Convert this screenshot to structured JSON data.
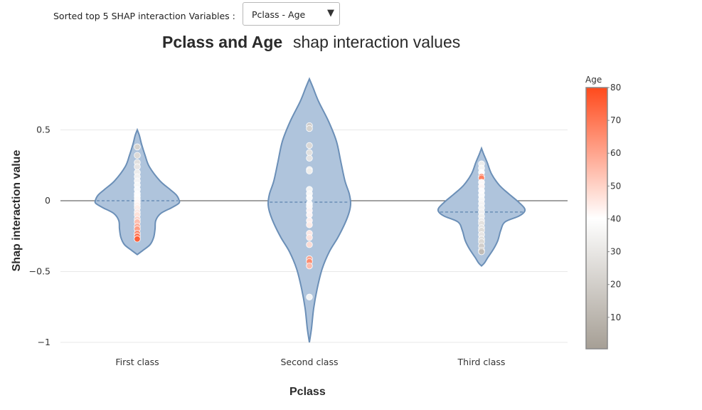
{
  "controls": {
    "label": "Sorted top 5 SHAP interaction Variables :",
    "selected": "Pclass - Age",
    "caret": "▼"
  },
  "chart_data": {
    "type": "violin",
    "title_bold": "Pclass and Age",
    "title_rest": "shap interaction values",
    "xlabel": "Pclass",
    "ylabel": "Shap interaction value",
    "categories": [
      "First class",
      "Second class",
      "Third class"
    ],
    "ylim": [
      -1.0,
      0.87
    ],
    "yticks": [
      0.5,
      0,
      -0.5,
      -1
    ],
    "ytick_labels": [
      "0.5",
      "0",
      "−0.5",
      "−1"
    ],
    "grid": true,
    "colorbar": {
      "title": "Age",
      "range": [
        0.42,
        80
      ],
      "ticks": [
        10,
        20,
        30,
        40,
        50,
        60,
        70,
        80
      ],
      "colorscale": [
        "#a69f95",
        "#ffffff",
        "#ff4a1c"
      ]
    },
    "violin_colors": {
      "fill": "#afc4dc",
      "line": "#6b8fb7"
    },
    "series": [
      {
        "category": "First class",
        "y_range": [
          -0.38,
          0.5
        ],
        "median": 0.0,
        "points": [
          [
            0.38,
            22
          ],
          [
            0.32,
            25
          ],
          [
            0.27,
            28
          ],
          [
            0.24,
            30
          ],
          [
            0.2,
            33
          ],
          [
            0.17,
            35
          ],
          [
            0.14,
            37
          ],
          [
            0.11,
            38
          ],
          [
            0.08,
            39
          ],
          [
            0.05,
            40
          ],
          [
            0.03,
            40
          ],
          [
            0.01,
            41
          ],
          [
            -0.01,
            42
          ],
          [
            -0.03,
            43
          ],
          [
            -0.05,
            44
          ],
          [
            -0.08,
            45
          ],
          [
            -0.1,
            47
          ],
          [
            -0.13,
            50
          ],
          [
            -0.15,
            55
          ],
          [
            -0.18,
            58
          ],
          [
            -0.2,
            62
          ],
          [
            -0.23,
            66
          ],
          [
            -0.25,
            70
          ],
          [
            -0.27,
            76
          ]
        ]
      },
      {
        "category": "Second class",
        "y_range": [
          -1.0,
          0.86
        ],
        "median": -0.01,
        "points": [
          [
            0.53,
            20
          ],
          [
            0.51,
            22
          ],
          [
            0.39,
            25
          ],
          [
            0.34,
            28
          ],
          [
            0.3,
            30
          ],
          [
            0.22,
            32
          ],
          [
            0.21,
            33
          ],
          [
            0.08,
            36
          ],
          [
            0.05,
            38
          ],
          [
            0.02,
            39
          ],
          [
            -0.02,
            40
          ],
          [
            -0.04,
            41
          ],
          [
            -0.07,
            42
          ],
          [
            -0.1,
            42
          ],
          [
            -0.14,
            43
          ],
          [
            -0.17,
            44
          ],
          [
            -0.23,
            45
          ],
          [
            -0.26,
            46
          ],
          [
            -0.31,
            48
          ],
          [
            -0.41,
            60
          ],
          [
            -0.43,
            66
          ],
          [
            -0.46,
            55
          ],
          [
            -0.68,
            36
          ]
        ]
      },
      {
        "category": "Third class",
        "y_range": [
          -0.46,
          0.37
        ],
        "median": -0.08,
        "points": [
          [
            0.26,
            33
          ],
          [
            0.23,
            36
          ],
          [
            0.2,
            40
          ],
          [
            0.17,
            70
          ],
          [
            0.16,
            68
          ],
          [
            0.13,
            41
          ],
          [
            0.1,
            42
          ],
          [
            0.07,
            40
          ],
          [
            0.04,
            39
          ],
          [
            0.01,
            38
          ],
          [
            -0.02,
            37
          ],
          [
            -0.05,
            36
          ],
          [
            -0.08,
            35
          ],
          [
            -0.11,
            34
          ],
          [
            -0.14,
            32
          ],
          [
            -0.16,
            28
          ],
          [
            -0.19,
            30
          ],
          [
            -0.21,
            26
          ],
          [
            -0.24,
            30
          ],
          [
            -0.27,
            27
          ],
          [
            -0.29,
            24
          ],
          [
            -0.32,
            20
          ],
          [
            -0.35,
            15
          ],
          [
            -0.36,
            12
          ]
        ]
      }
    ]
  }
}
